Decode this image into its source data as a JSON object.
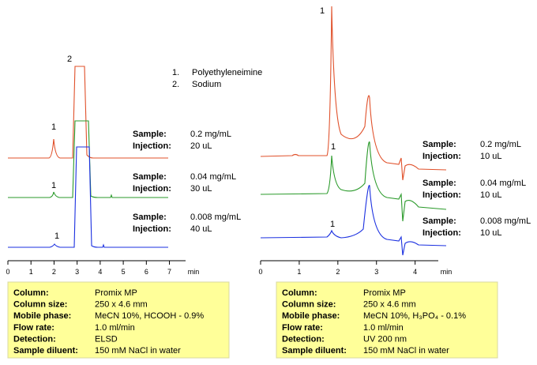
{
  "charts": [
    {
      "x_label": "min",
      "xlim": [
        0,
        7.7
      ],
      "xticks": [
        0,
        1,
        2,
        3,
        4,
        5,
        6,
        7
      ],
      "legend": [
        {
          "number": "1.",
          "name": "Polyethyleneimine"
        },
        {
          "number": "2.",
          "name": "Sodium"
        }
      ],
      "peak_labels": [
        "2",
        "1",
        "1",
        "1"
      ],
      "samples": [
        {
          "sample_label": "Sample:",
          "sample": "0.2 mg/mL",
          "injection_label": "Injection:",
          "injection": "20 uL"
        },
        {
          "sample_label": "Sample:",
          "sample": "0.04 mg/mL",
          "injection_label": "Injection:",
          "injection": "30 uL"
        },
        {
          "sample_label": "Sample:",
          "sample": "0.008 mg/mL",
          "injection_label": "Injection:",
          "injection": "40 uL"
        }
      ],
      "conditions": [
        [
          "Column:",
          "Promix MP"
        ],
        [
          "Column size:",
          "250 x 4.6 mm"
        ],
        [
          "Mobile phase:",
          "MeCN  10%, HCOOH - 0.9%"
        ],
        [
          "Flow rate:",
          "1.0 ml/min"
        ],
        [
          "Detection:",
          "ELSD"
        ],
        [
          "Sample diluent:",
          "150 mM NaCl in water"
        ]
      ]
    },
    {
      "x_label": "min",
      "xlim": [
        0,
        4.6
      ],
      "xticks": [
        0,
        1,
        2,
        3,
        4
      ],
      "peak_labels": [
        "1",
        "1",
        "1"
      ],
      "samples": [
        {
          "sample_label": "Sample:",
          "sample": "0.2 mg/mL",
          "injection_label": "Injection:",
          "injection": "10 uL"
        },
        {
          "sample_label": "Sample:",
          "sample": "0.04 mg/mL",
          "injection_label": "Injection:",
          "injection": "10 uL"
        },
        {
          "sample_label": "Sample:",
          "sample": "0.008 mg/mL",
          "injection_label": "Injection:",
          "injection": "10 uL"
        }
      ],
      "conditions": [
        [
          "Column:",
          "Promix MP"
        ],
        [
          "Column size:",
          "250 x 4.6 mm"
        ],
        [
          "Mobile phase:",
          "MeCN  10%, H₃PO₄ - 0.1%"
        ],
        [
          "Flow rate:",
          "1.0 ml/min"
        ],
        [
          "Detection:",
          "UV 200 nm"
        ],
        [
          "Sample diluent:",
          "150 mM NaCl in water"
        ]
      ]
    }
  ]
}
